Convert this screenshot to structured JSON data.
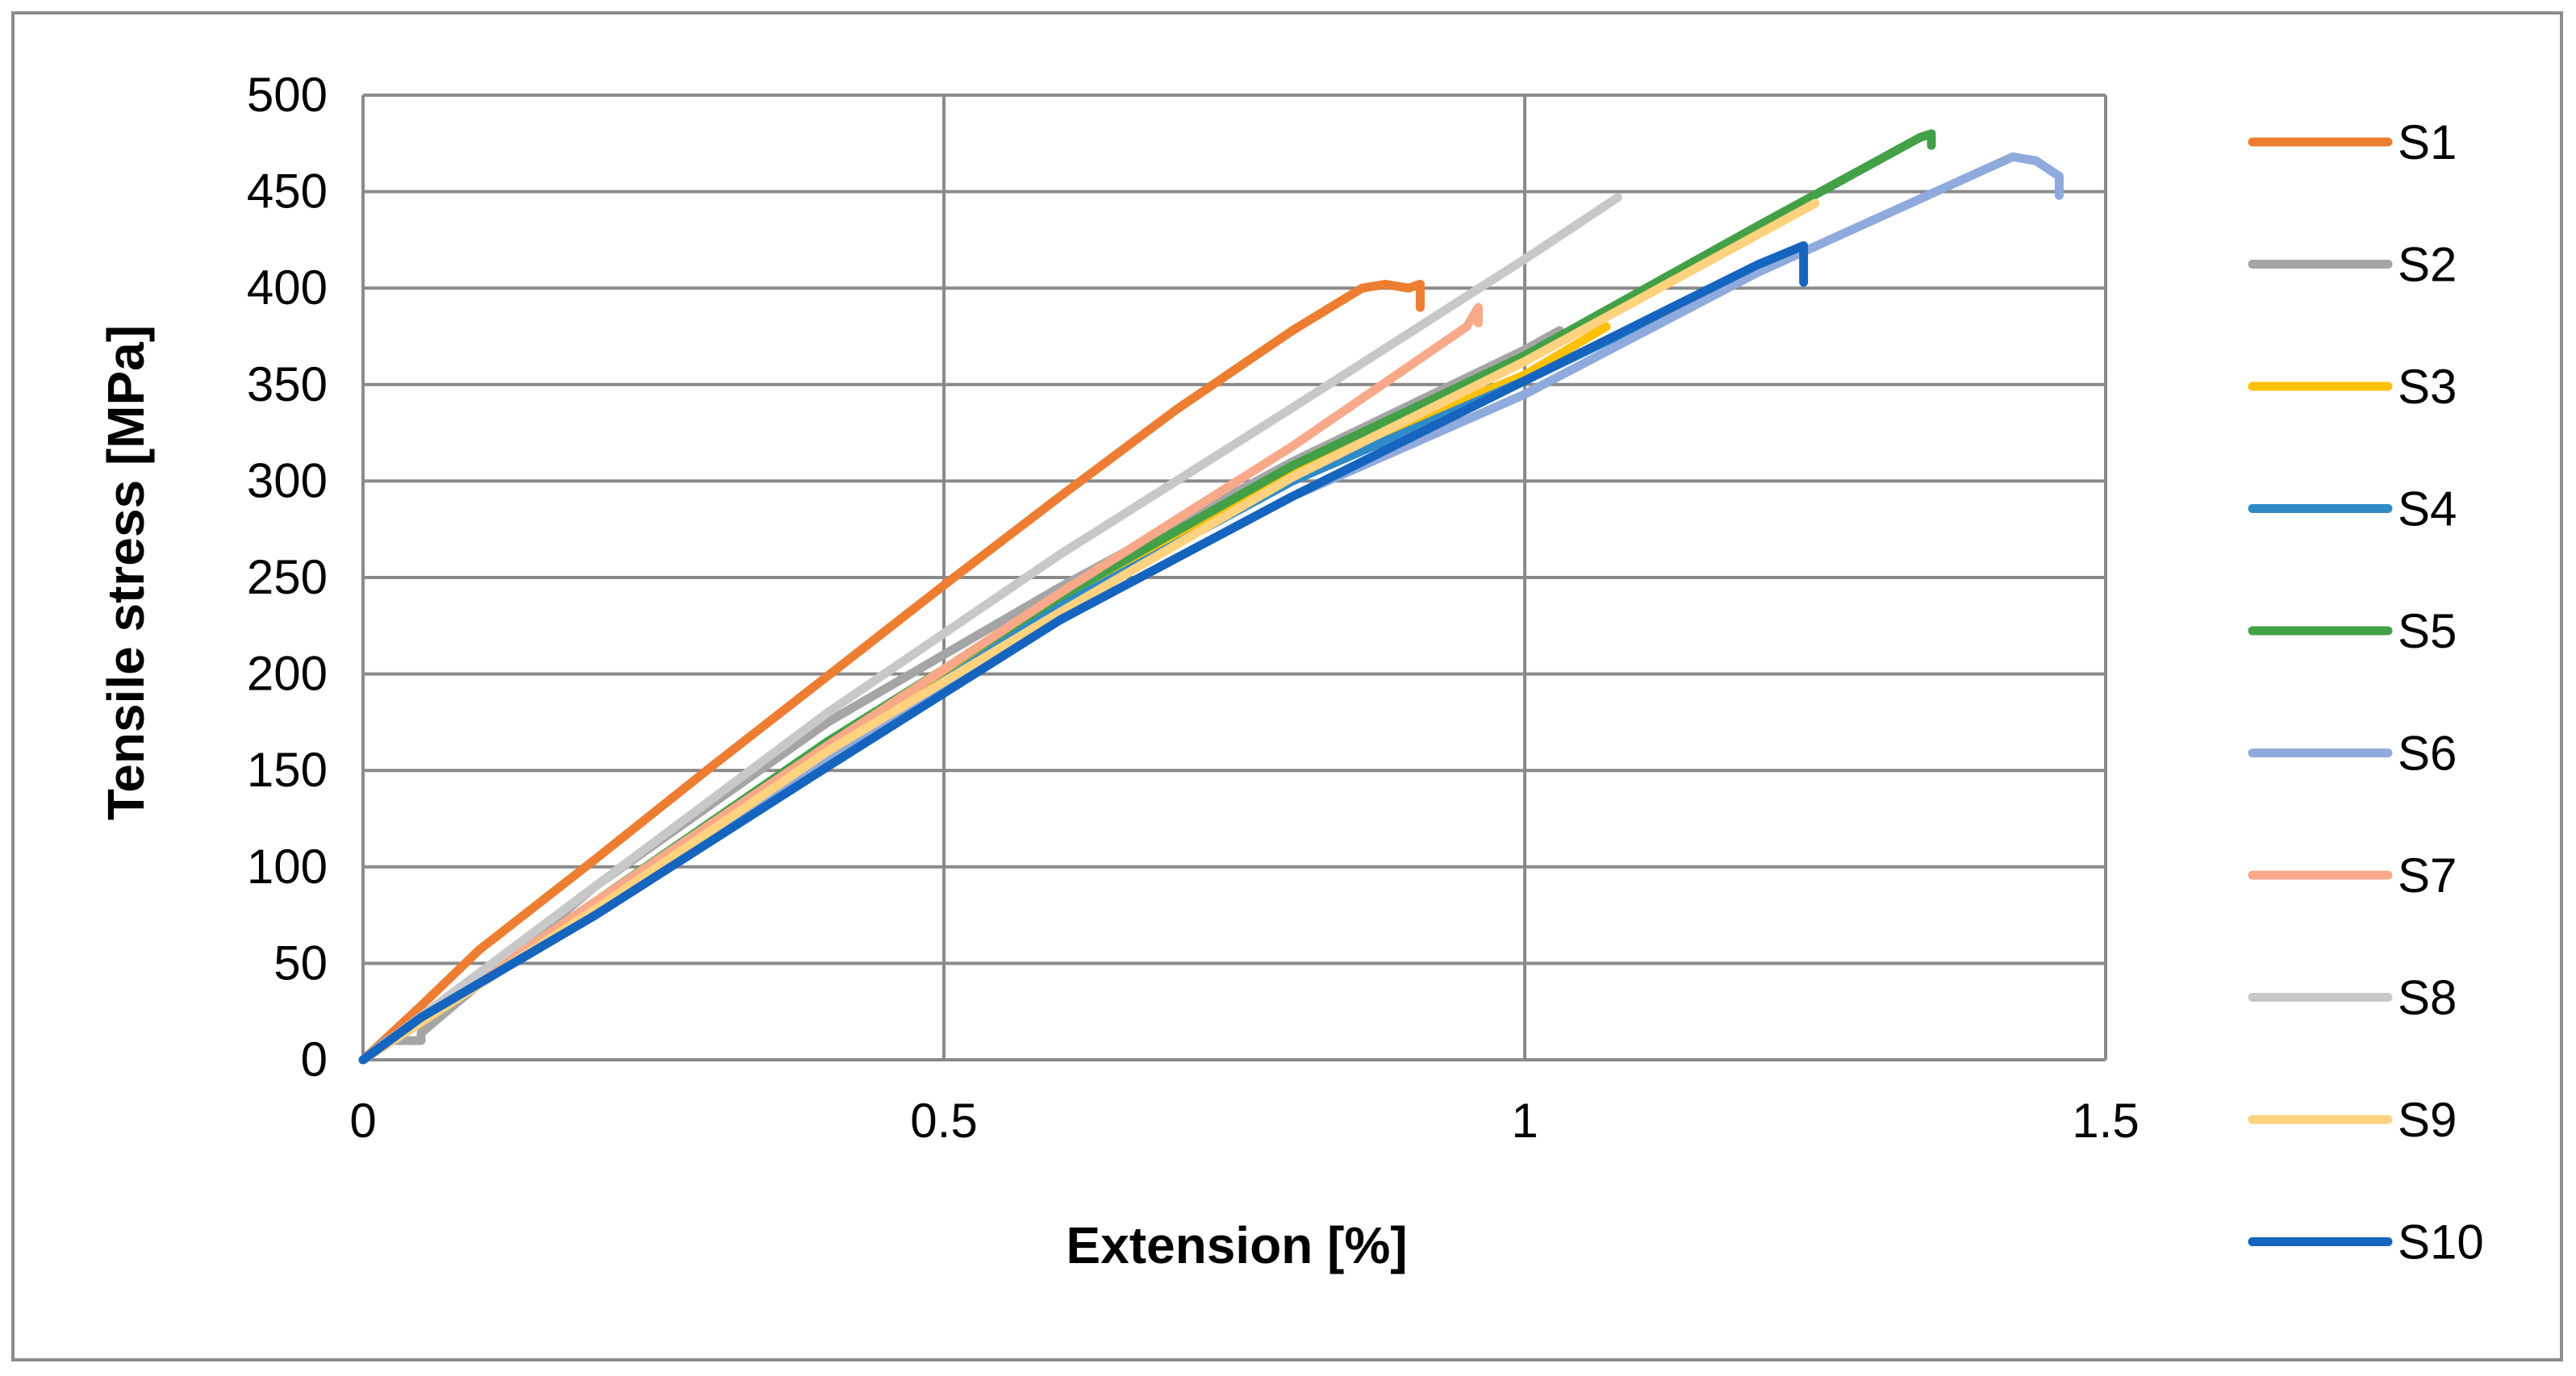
{
  "chart_data": {
    "type": "line",
    "xlabel": "Extension [%]",
    "ylabel": "Tensile stress [MPa]",
    "xlim": [
      0,
      1.5
    ],
    "ylim": [
      0,
      500
    ],
    "xticks": [
      "0",
      "0.5",
      "1",
      "1.5"
    ],
    "yticks": [
      "0",
      "50",
      "100",
      "150",
      "200",
      "250",
      "300",
      "350",
      "400",
      "450",
      "500"
    ],
    "grid": true,
    "legend_position": "right",
    "series": [
      {
        "name": "S1",
        "color": "#ED7D31",
        "x": [
          0,
          0.05,
          0.1,
          0.2,
          0.3,
          0.4,
          0.5,
          0.6,
          0.7,
          0.8,
          0.86,
          0.88,
          0.9,
          0.91,
          0.91
        ],
        "y": [
          0,
          28,
          57,
          104,
          152,
          199,
          246,
          292,
          337,
          378,
          400,
          402,
          400,
          402,
          390
        ]
      },
      {
        "name": "S2",
        "color": "#A5A5A5",
        "x": [
          0,
          0.02,
          0.05,
          0.05,
          0.2,
          0.4,
          0.6,
          0.8,
          1.0,
          1.03
        ],
        "y": [
          0,
          10,
          10,
          14,
          90,
          175,
          245,
          310,
          368,
          378
        ]
      },
      {
        "name": "S3",
        "color": "#FFC000",
        "x": [
          0,
          0.2,
          0.4,
          0.6,
          0.8,
          1.0,
          1.07
        ],
        "y": [
          0,
          80,
          162,
          240,
          305,
          355,
          380
        ]
      },
      {
        "name": "S4",
        "color": "#2E8BC8",
        "x": [
          0,
          0.2,
          0.4,
          0.6,
          0.8,
          1.0,
          1.2,
          1.24
        ],
        "y": [
          0,
          78,
          158,
          235,
          300,
          352,
          410,
          422
        ]
      },
      {
        "name": "S5",
        "color": "#43A047",
        "x": [
          0,
          0.2,
          0.4,
          0.6,
          0.8,
          1.0,
          1.2,
          1.34,
          1.35,
          1.35
        ],
        "y": [
          0,
          82,
          165,
          240,
          308,
          365,
          432,
          478,
          480,
          474
        ]
      },
      {
        "name": "S6",
        "color": "#8FAADC",
        "x": [
          0,
          0.2,
          0.4,
          0.6,
          0.8,
          1.0,
          1.2,
          1.42,
          1.44,
          1.46,
          1.46
        ],
        "y": [
          0,
          78,
          155,
          228,
          292,
          345,
          408,
          468,
          466,
          458,
          448
        ]
      },
      {
        "name": "S7",
        "color": "#F8A98A",
        "x": [
          0,
          0.2,
          0.4,
          0.6,
          0.8,
          0.95,
          0.96,
          0.96
        ],
        "y": [
          0,
          82,
          163,
          242,
          318,
          380,
          390,
          382
        ]
      },
      {
        "name": "S8",
        "color": "#C8C8C8",
        "x": [
          0,
          0.2,
          0.4,
          0.6,
          0.8,
          1.0,
          1.08
        ],
        "y": [
          0,
          90,
          180,
          262,
          338,
          415,
          447
        ]
      },
      {
        "name": "S9",
        "color": "#FFD27F",
        "x": [
          0,
          0.2,
          0.4,
          0.6,
          0.8,
          1.0,
          1.25
        ],
        "y": [
          0,
          78,
          160,
          232,
          302,
          362,
          444
        ]
      },
      {
        "name": "S10",
        "color": "#1565C0",
        "x": [
          0,
          0.05,
          0.2,
          0.4,
          0.6,
          0.8,
          1.0,
          1.2,
          1.24,
          1.24
        ],
        "y": [
          0,
          22,
          75,
          152,
          228,
          292,
          352,
          412,
          422,
          403
        ]
      }
    ]
  }
}
